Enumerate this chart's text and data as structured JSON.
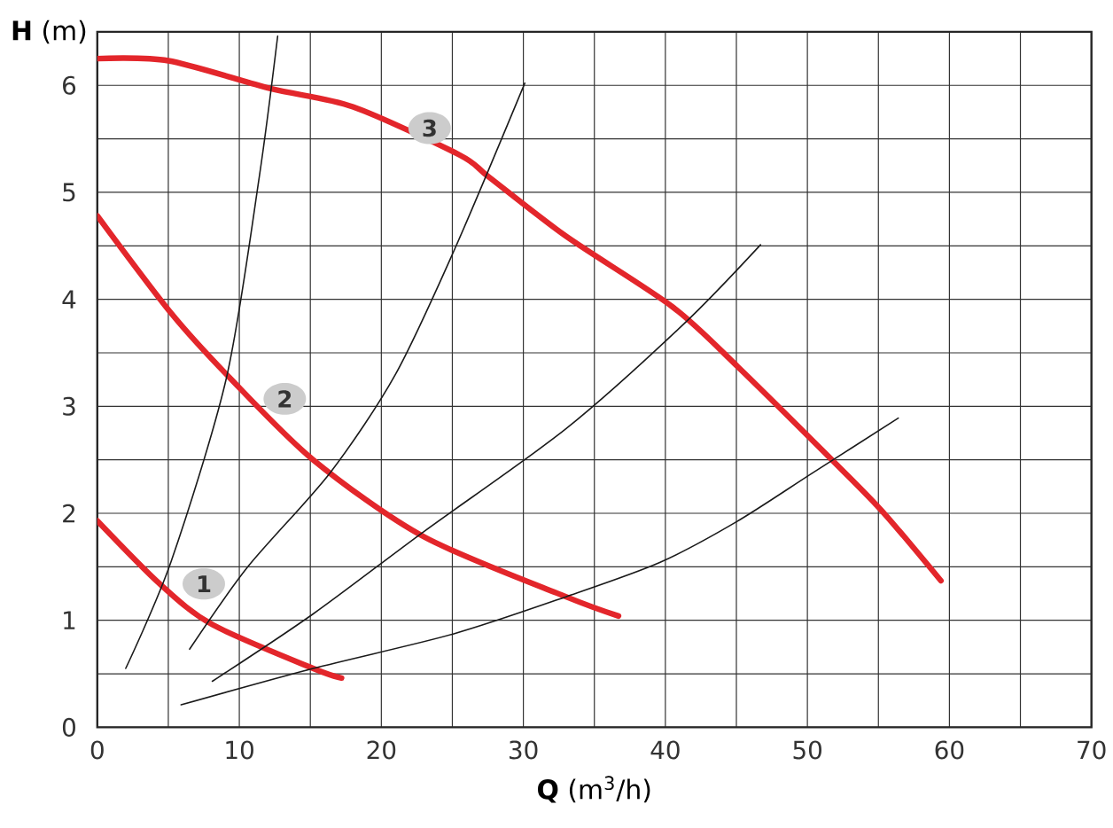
{
  "chart_data": {
    "type": "line",
    "xlabel": "**Q** (m$^{3}$/h)",
    "ylabel": "**H** (m)",
    "xlim": [
      0,
      70
    ],
    "ylim": [
      0,
      6.5
    ],
    "xticks": [
      0,
      10,
      20,
      30,
      40,
      50,
      60,
      70
    ],
    "yticks": [
      0,
      1,
      2,
      3,
      4,
      5,
      6
    ],
    "grid": true,
    "marker": "none",
    "line_style": "solid",
    "series": [
      {
        "color": "#e3262b",
        "x": [
          0,
          4.4,
          8.1,
          15.2,
          17.2
        ],
        "values": [
          1.93,
          1.34,
          0.96,
          0.55,
          0.46
        ]
      },
      {
        "color": "#e3262b",
        "x": [
          0,
          5.2,
          9.3,
          15.2,
          23,
          33,
          36.7
        ],
        "values": [
          4.78,
          3.87,
          3.27,
          2.5,
          1.78,
          1.22,
          1.04
        ]
      },
      {
        "color": "#e3262b",
        "x": [
          0,
          5,
          12.2,
          18,
          25.5,
          27.6,
          33,
          40.5,
          45.1,
          52.1,
          55.4,
          59.4
        ],
        "values": [
          6.25,
          6.23,
          5.97,
          5.8,
          5.35,
          5.14,
          4.59,
          3.93,
          3.37,
          2.45,
          2.0,
          1.37
        ]
      },
      {
        "color": "#1a1a1a",
        "x": [
          2,
          5.2,
          9.1,
          11.4,
          12.7
        ],
        "values": [
          0.55,
          1.55,
          3.27,
          5.14,
          6.46
        ]
      },
      {
        "color": "#1a1a1a",
        "x": [
          6.5,
          10.6,
          16.4,
          21,
          25.2,
          30.1
        ],
        "values": [
          0.73,
          1.5,
          2.38,
          3.3,
          4.48,
          6.02
        ]
      },
      {
        "color": "#1a1a1a",
        "x": [
          8.1,
          15.2,
          23,
          33,
          41.3,
          46.7
        ],
        "values": [
          0.43,
          1.06,
          1.83,
          2.79,
          3.77,
          4.51
        ]
      },
      {
        "color": "#1a1a1a",
        "x": [
          5.9,
          15.2,
          25,
          33,
          39.6,
          45,
          50.4,
          56.4
        ],
        "values": [
          0.21,
          0.55,
          0.87,
          1.22,
          1.54,
          1.92,
          2.38,
          2.89
        ]
      }
    ],
    "annotations": [
      {
        "text": "1",
        "x": 7.5,
        "y": 1.34
      },
      {
        "text": "2",
        "x": 13.2,
        "y": 3.07
      },
      {
        "text": "3",
        "x": 23.4,
        "y": 5.6
      }
    ]
  }
}
